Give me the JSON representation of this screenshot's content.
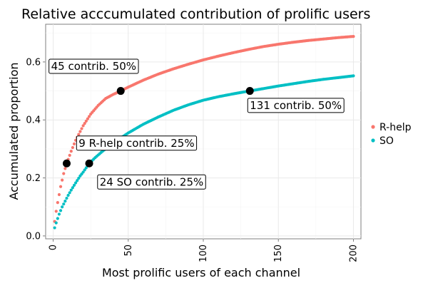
{
  "chart_data": {
    "type": "scatter",
    "title": "Relative acccumulated contribution of prolific users",
    "xlabel": "Most prolific users of each channel",
    "ylabel": "Accumulated proportion",
    "xlim": [
      -5,
      205
    ],
    "ylim": [
      -0.01,
      0.73
    ],
    "x_ticks": [
      0,
      50,
      100,
      150,
      200
    ],
    "x_tick_labels": [
      "0",
      "50",
      "100",
      "150",
      "200"
    ],
    "y_ticks": [
      0.0,
      0.2,
      0.4,
      0.6
    ],
    "y_tick_labels": [
      "0.0",
      "0.2",
      "0.4",
      "0.6"
    ],
    "grid": true,
    "legend": "right",
    "series": [
      {
        "name": "R-help",
        "color": "#F8766D",
        "x": [
          1,
          2,
          3,
          5,
          7,
          9,
          12,
          15,
          20,
          25,
          30,
          35,
          40,
          45,
          50,
          60,
          70,
          80,
          90,
          100,
          110,
          120,
          130,
          140,
          150,
          160,
          170,
          180,
          190,
          200
        ],
        "y": [
          0.05,
          0.085,
          0.115,
          0.17,
          0.215,
          0.25,
          0.292,
          0.33,
          0.38,
          0.42,
          0.45,
          0.474,
          0.488,
          0.5,
          0.513,
          0.537,
          0.558,
          0.576,
          0.592,
          0.607,
          0.62,
          0.632,
          0.643,
          0.653,
          0.661,
          0.668,
          0.674,
          0.679,
          0.684,
          0.688
        ]
      },
      {
        "name": "SO",
        "color": "#00BFC4",
        "x": [
          1,
          2,
          3,
          4,
          6,
          8,
          10,
          12,
          15,
          18,
          20,
          24,
          28,
          32,
          36,
          40,
          45,
          50,
          60,
          70,
          80,
          90,
          100,
          110,
          120,
          131,
          140,
          150,
          160,
          170,
          180,
          190,
          200
        ],
        "y": [
          0.028,
          0.045,
          0.06,
          0.075,
          0.1,
          0.12,
          0.14,
          0.158,
          0.183,
          0.207,
          0.22,
          0.25,
          0.27,
          0.288,
          0.305,
          0.32,
          0.338,
          0.355,
          0.385,
          0.41,
          0.433,
          0.452,
          0.468,
          0.48,
          0.49,
          0.5,
          0.508,
          0.517,
          0.525,
          0.533,
          0.54,
          0.546,
          0.552
        ]
      }
    ],
    "highlights": [
      {
        "x": 9,
        "y": 0.25
      },
      {
        "x": 24,
        "y": 0.25
      },
      {
        "x": 45,
        "y": 0.5
      },
      {
        "x": 131,
        "y": 0.5
      }
    ],
    "annotations": [
      {
        "text": "45 contrib. 50%",
        "x": 27,
        "y": 0.585,
        "align": "center"
      },
      {
        "text": "131 contrib. 50%",
        "x": 131,
        "y": 0.45,
        "align": "start"
      },
      {
        "text": "9 R-help contrib. 25%",
        "x": 17,
        "y": 0.32,
        "align": "start"
      },
      {
        "text": "24 SO contrib. 25%",
        "x": 31,
        "y": 0.186,
        "align": "start"
      }
    ]
  }
}
